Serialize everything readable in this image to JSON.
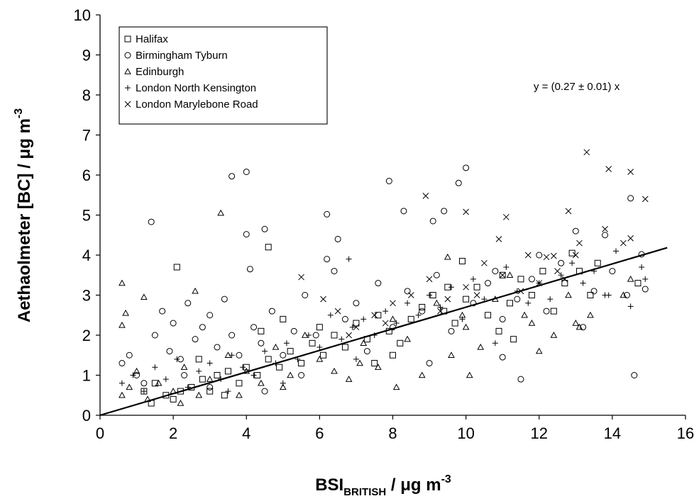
{
  "chart_data": {
    "type": "scatter",
    "xlabel": {
      "base": "BSI",
      "sub": "BRITISH",
      "rest": " / μg m",
      "sup": "-3"
    },
    "ylabel": {
      "base": "Aethaolmeter [BC] / μg m",
      "sup": "-3"
    },
    "xlim": [
      0,
      16
    ],
    "ylim": [
      0,
      10
    ],
    "xticks": [
      "0",
      "2",
      "4",
      "6",
      "8",
      "10",
      "12",
      "14",
      "16"
    ],
    "yticks": [
      "0",
      "1",
      "2",
      "3",
      "4",
      "5",
      "6",
      "7",
      "8",
      "9",
      "10"
    ],
    "grid": false,
    "legend_position": "top-left",
    "annotation": "y = (0.27 ± 0.01) x",
    "fit_line": {
      "slope": 0.27,
      "x": [
        0,
        15.5
      ]
    },
    "series": [
      {
        "name": "Halifax",
        "marker": "square",
        "points": [
          [
            2.1,
            3.7
          ],
          [
            4.6,
            4.2
          ],
          [
            9.9,
            3.85
          ],
          [
            12.9,
            4.05
          ],
          [
            13.6,
            3.8
          ],
          [
            14.7,
            3.3
          ],
          [
            1.2,
            0.6
          ],
          [
            1.5,
            0.8
          ],
          [
            1.8,
            0.5
          ],
          [
            2.2,
            0.6
          ],
          [
            2.5,
            0.7
          ],
          [
            2.8,
            0.9
          ],
          [
            3.0,
            0.6
          ],
          [
            3.2,
            1.0
          ],
          [
            3.5,
            1.1
          ],
          [
            3.8,
            0.8
          ],
          [
            4.0,
            1.2
          ],
          [
            4.3,
            1.0
          ],
          [
            4.6,
            1.4
          ],
          [
            4.9,
            1.2
          ],
          [
            5.2,
            1.6
          ],
          [
            5.5,
            1.3
          ],
          [
            5.8,
            1.8
          ],
          [
            6.1,
            1.5
          ],
          [
            6.4,
            2.0
          ],
          [
            6.7,
            1.7
          ],
          [
            7.0,
            2.3
          ],
          [
            7.3,
            1.9
          ],
          [
            7.6,
            2.5
          ],
          [
            7.9,
            2.1
          ],
          [
            8.2,
            1.8
          ],
          [
            8.5,
            2.4
          ],
          [
            8.8,
            2.7
          ],
          [
            9.1,
            3.0
          ],
          [
            9.4,
            2.6
          ],
          [
            9.7,
            2.3
          ],
          [
            10.0,
            2.9
          ],
          [
            10.3,
            3.2
          ],
          [
            10.6,
            2.5
          ],
          [
            10.9,
            2.1
          ],
          [
            11.2,
            2.8
          ],
          [
            11.5,
            3.4
          ],
          [
            11.8,
            3.0
          ],
          [
            12.1,
            3.6
          ],
          [
            12.4,
            2.6
          ],
          [
            12.7,
            3.3
          ],
          [
            13.1,
            3.6
          ],
          [
            13.4,
            3.0
          ],
          [
            11.3,
            1.9
          ],
          [
            8.0,
            1.5
          ],
          [
            6.0,
            2.2
          ],
          [
            4.4,
            2.1
          ],
          [
            2.7,
            1.4
          ],
          [
            5.0,
            2.4
          ],
          [
            7.5,
            1.3
          ],
          [
            9.5,
            3.2
          ],
          [
            11.0,
            3.5
          ],
          [
            3.4,
            0.5
          ],
          [
            2.0,
            0.4
          ],
          [
            1.4,
            0.3
          ]
        ]
      },
      {
        "name": "Birmingham Tyburn",
        "marker": "circle",
        "points": [
          [
            1.4,
            4.83
          ],
          [
            3.6,
            5.97
          ],
          [
            4.0,
            6.08
          ],
          [
            4.0,
            4.52
          ],
          [
            4.5,
            4.65
          ],
          [
            4.1,
            3.65
          ],
          [
            6.2,
            5.02
          ],
          [
            6.5,
            4.4
          ],
          [
            7.9,
            5.85
          ],
          [
            8.3,
            5.1
          ],
          [
            9.4,
            5.1
          ],
          [
            9.8,
            5.8
          ],
          [
            10.0,
            6.18
          ],
          [
            9.1,
            4.85
          ],
          [
            14.5,
            5.42
          ],
          [
            14.6,
            1.0
          ],
          [
            11.5,
            0.9
          ],
          [
            13.0,
            4.6
          ],
          [
            14.8,
            4.02
          ],
          [
            13.8,
            4.5
          ],
          [
            11.0,
            1.45
          ],
          [
            12.0,
            4.0
          ],
          [
            10.8,
            3.6
          ],
          [
            9.0,
            1.3
          ],
          [
            0.6,
            1.3
          ],
          [
            0.8,
            1.5
          ],
          [
            1.0,
            1.0
          ],
          [
            1.2,
            0.8
          ],
          [
            1.5,
            2.0
          ],
          [
            1.7,
            2.6
          ],
          [
            1.9,
            1.6
          ],
          [
            2.0,
            2.3
          ],
          [
            2.2,
            1.4
          ],
          [
            2.4,
            2.8
          ],
          [
            2.6,
            1.9
          ],
          [
            2.8,
            2.2
          ],
          [
            3.0,
            2.5
          ],
          [
            3.2,
            1.7
          ],
          [
            3.4,
            2.9
          ],
          [
            3.6,
            2.0
          ],
          [
            3.8,
            1.5
          ],
          [
            4.2,
            2.2
          ],
          [
            4.4,
            1.8
          ],
          [
            4.7,
            2.6
          ],
          [
            5.0,
            1.5
          ],
          [
            5.3,
            2.1
          ],
          [
            5.6,
            3.0
          ],
          [
            5.9,
            2.0
          ],
          [
            6.2,
            3.9
          ],
          [
            6.4,
            3.6
          ],
          [
            6.7,
            2.4
          ],
          [
            7.0,
            2.8
          ],
          [
            7.3,
            1.6
          ],
          [
            7.6,
            3.3
          ],
          [
            8.0,
            2.2
          ],
          [
            8.4,
            3.1
          ],
          [
            8.8,
            2.6
          ],
          [
            9.2,
            3.5
          ],
          [
            9.6,
            2.1
          ],
          [
            10.2,
            2.8
          ],
          [
            10.6,
            3.3
          ],
          [
            11.0,
            2.4
          ],
          [
            11.4,
            2.9
          ],
          [
            11.8,
            3.4
          ],
          [
            12.2,
            2.6
          ],
          [
            12.6,
            3.8
          ],
          [
            13.2,
            2.2
          ],
          [
            13.5,
            3.1
          ],
          [
            14.0,
            3.6
          ],
          [
            14.4,
            3.0
          ],
          [
            14.9,
            3.15
          ],
          [
            2.3,
            1.0
          ],
          [
            3.0,
            0.7
          ],
          [
            5.5,
            1.0
          ],
          [
            4.5,
            0.6
          ]
        ]
      },
      {
        "name": "Edinburgh",
        "marker": "triangle",
        "points": [
          [
            0.6,
            3.3
          ],
          [
            0.7,
            2.55
          ],
          [
            0.6,
            2.25
          ],
          [
            1.2,
            2.95
          ],
          [
            2.6,
            3.1
          ],
          [
            3.3,
            5.05
          ],
          [
            9.5,
            3.95
          ],
          [
            10.1,
            1.0
          ],
          [
            8.1,
            0.7
          ],
          [
            0.6,
            0.5
          ],
          [
            0.8,
            0.7
          ],
          [
            1.0,
            1.1
          ],
          [
            1.3,
            0.4
          ],
          [
            1.6,
            0.8
          ],
          [
            2.0,
            0.6
          ],
          [
            2.3,
            1.2
          ],
          [
            2.7,
            0.5
          ],
          [
            3.0,
            0.9
          ],
          [
            3.5,
            1.5
          ],
          [
            4.0,
            1.1
          ],
          [
            4.4,
            0.8
          ],
          [
            4.8,
            1.7
          ],
          [
            5.2,
            1.0
          ],
          [
            5.6,
            2.0
          ],
          [
            6.0,
            1.4
          ],
          [
            6.4,
            1.1
          ],
          [
            6.8,
            0.9
          ],
          [
            7.2,
            1.8
          ],
          [
            7.6,
            1.2
          ],
          [
            8.0,
            2.4
          ],
          [
            8.4,
            1.9
          ],
          [
            8.8,
            1.0
          ],
          [
            9.2,
            2.8
          ],
          [
            9.6,
            1.5
          ],
          [
            10.0,
            2.2
          ],
          [
            10.4,
            1.7
          ],
          [
            10.8,
            2.9
          ],
          [
            11.2,
            3.5
          ],
          [
            11.6,
            2.5
          ],
          [
            12.0,
            1.6
          ],
          [
            12.4,
            2.0
          ],
          [
            12.8,
            3.0
          ],
          [
            13.0,
            2.3
          ],
          [
            13.4,
            2.5
          ],
          [
            14.3,
            3.0
          ],
          [
            14.5,
            3.4
          ],
          [
            13.1,
            2.2
          ],
          [
            11.8,
            2.3
          ],
          [
            9.9,
            2.5
          ],
          [
            7.1,
            1.3
          ],
          [
            5.0,
            0.7
          ],
          [
            3.8,
            0.5
          ],
          [
            2.2,
            0.3
          ]
        ]
      },
      {
        "name": "London North Kensington",
        "marker": "plus",
        "points": [
          [
            0.6,
            0.8
          ],
          [
            0.9,
            1.0
          ],
          [
            1.2,
            0.6
          ],
          [
            1.5,
            1.2
          ],
          [
            1.8,
            0.9
          ],
          [
            2.1,
            1.4
          ],
          [
            2.4,
            0.7
          ],
          [
            2.7,
            1.1
          ],
          [
            3.0,
            1.3
          ],
          [
            3.3,
            0.9
          ],
          [
            3.6,
            1.5
          ],
          [
            3.9,
            1.2
          ],
          [
            4.2,
            1.0
          ],
          [
            4.5,
            1.6
          ],
          [
            4.8,
            1.3
          ],
          [
            5.1,
            1.8
          ],
          [
            5.4,
            1.4
          ],
          [
            5.7,
            2.0
          ],
          [
            6.0,
            1.7
          ],
          [
            6.3,
            2.5
          ],
          [
            6.6,
            1.9
          ],
          [
            6.8,
            3.9
          ],
          [
            6.9,
            2.2
          ],
          [
            7.2,
            2.4
          ],
          [
            7.5,
            2.0
          ],
          [
            7.8,
            2.6
          ],
          [
            8.1,
            2.3
          ],
          [
            8.4,
            2.8
          ],
          [
            8.7,
            2.5
          ],
          [
            9.0,
            3.0
          ],
          [
            9.3,
            2.7
          ],
          [
            9.6,
            3.2
          ],
          [
            9.9,
            2.4
          ],
          [
            10.2,
            3.4
          ],
          [
            10.5,
            2.9
          ],
          [
            10.8,
            1.8
          ],
          [
            11.1,
            3.7
          ],
          [
            11.4,
            3.1
          ],
          [
            11.7,
            2.8
          ],
          [
            12.0,
            3.3
          ],
          [
            12.3,
            2.9
          ],
          [
            12.6,
            3.5
          ],
          [
            12.9,
            3.8
          ],
          [
            13.2,
            3.3
          ],
          [
            13.5,
            3.6
          ],
          [
            13.8,
            3.0
          ],
          [
            14.1,
            4.1
          ],
          [
            14.5,
            2.72
          ],
          [
            14.8,
            3.7
          ],
          [
            14.9,
            3.4
          ],
          [
            13.9,
            3.0
          ],
          [
            5.0,
            0.8
          ],
          [
            3.5,
            0.6
          ],
          [
            7.0,
            1.4
          ]
        ]
      },
      {
        "name": "London Marylebone Road",
        "marker": "cross",
        "points": [
          [
            13.3,
            6.57
          ],
          [
            13.9,
            6.15
          ],
          [
            14.5,
            6.08
          ],
          [
            14.9,
            5.4
          ],
          [
            12.8,
            5.1
          ],
          [
            11.1,
            4.95
          ],
          [
            10.0,
            5.08
          ],
          [
            8.9,
            5.48
          ],
          [
            13.8,
            4.65
          ],
          [
            14.5,
            4.42
          ],
          [
            10.9,
            4.4
          ],
          [
            12.2,
            3.95
          ],
          [
            12.4,
            3.98
          ],
          [
            13.1,
            4.3
          ],
          [
            5.5,
            3.45
          ],
          [
            6.1,
            2.9
          ],
          [
            6.5,
            2.6
          ],
          [
            7.0,
            2.2
          ],
          [
            7.5,
            2.5
          ],
          [
            8.0,
            2.8
          ],
          [
            8.5,
            3.0
          ],
          [
            9.0,
            3.4
          ],
          [
            9.5,
            2.9
          ],
          [
            10.0,
            3.2
          ],
          [
            10.5,
            3.8
          ],
          [
            11.0,
            3.5
          ],
          [
            11.5,
            3.1
          ],
          [
            12.0,
            3.3
          ],
          [
            12.5,
            3.6
          ],
          [
            13.0,
            4.0
          ],
          [
            6.8,
            2.0
          ],
          [
            7.8,
            2.3
          ],
          [
            9.3,
            2.6
          ],
          [
            10.3,
            3.0
          ],
          [
            11.7,
            4.0
          ],
          [
            12.7,
            3.4
          ],
          [
            14.3,
            4.3
          ]
        ]
      }
    ]
  }
}
